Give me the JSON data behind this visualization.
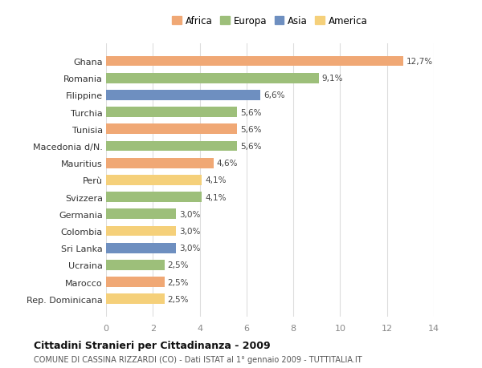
{
  "categories": [
    "Rep. Dominicana",
    "Marocco",
    "Ucraina",
    "Sri Lanka",
    "Colombia",
    "Germania",
    "Svizzera",
    "Perù",
    "Mauritius",
    "Macedonia d/N.",
    "Tunisia",
    "Turchia",
    "Filippine",
    "Romania",
    "Ghana"
  ],
  "values": [
    2.5,
    2.5,
    2.5,
    3.0,
    3.0,
    3.0,
    4.1,
    4.1,
    4.6,
    5.6,
    5.6,
    5.6,
    6.6,
    9.1,
    12.7
  ],
  "colors": [
    "#f5d07a",
    "#f0a875",
    "#9dbf7a",
    "#6e8fc0",
    "#f5d07a",
    "#9dbf7a",
    "#9dbf7a",
    "#f5d07a",
    "#f0a875",
    "#9dbf7a",
    "#f0a875",
    "#9dbf7a",
    "#6e8fc0",
    "#9dbf7a",
    "#f0a875"
  ],
  "labels": [
    "2,5%",
    "2,5%",
    "2,5%",
    "3,0%",
    "3,0%",
    "3,0%",
    "4,1%",
    "4,1%",
    "4,6%",
    "5,6%",
    "5,6%",
    "5,6%",
    "6,6%",
    "9,1%",
    "12,7%"
  ],
  "legend": [
    {
      "label": "Africa",
      "color": "#f0a875"
    },
    {
      "label": "Europa",
      "color": "#9dbf7a"
    },
    {
      "label": "Asia",
      "color": "#6e8fc0"
    },
    {
      "label": "America",
      "color": "#f5d07a"
    }
  ],
  "title": "Cittadini Stranieri per Cittadinanza - 2009",
  "subtitle": "COMUNE DI CASSINA RIZZARDI (CO) - Dati ISTAT al 1° gennaio 2009 - TUTTITALIA.IT",
  "xlim": [
    0,
    14
  ],
  "xticks": [
    0,
    2,
    4,
    6,
    8,
    10,
    12,
    14
  ],
  "background_color": "#ffffff",
  "grid_color": "#dddddd",
  "bar_height": 0.6
}
